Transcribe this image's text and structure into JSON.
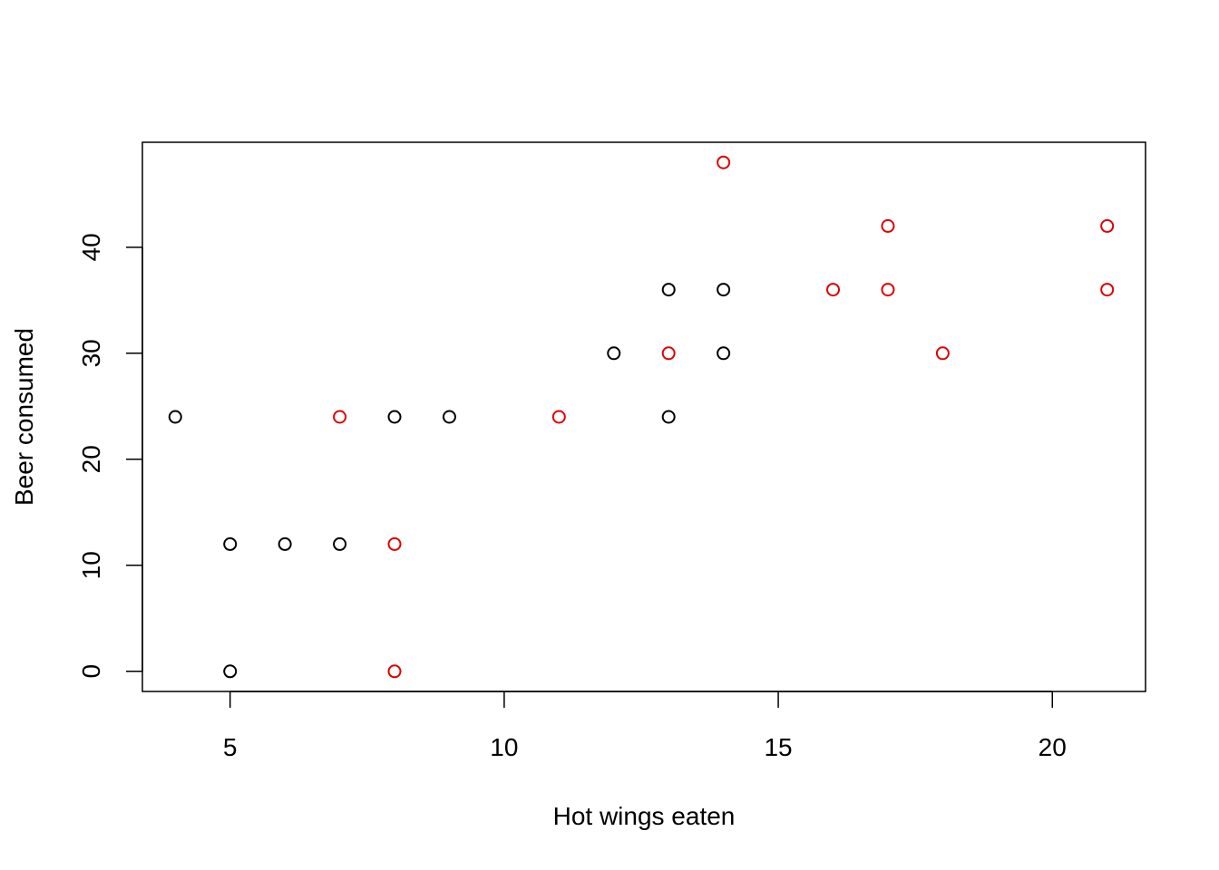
{
  "chart_data": {
    "type": "scatter",
    "title": "",
    "xlabel": "Hot wings eaten",
    "ylabel": "Beer consumed",
    "xlim": [
      3.4,
      21.7
    ],
    "ylim": [
      -1.9,
      49.9
    ],
    "x_ticks": [
      5,
      10,
      15,
      20
    ],
    "y_ticks": [
      0,
      10,
      20,
      30,
      40
    ],
    "grid": false,
    "legend": "none",
    "series": [
      {
        "color": "#000000",
        "marker": "open-circle",
        "points": [
          {
            "x": 4,
            "y": 24
          },
          {
            "x": 5,
            "y": 0
          },
          {
            "x": 5,
            "y": 12
          },
          {
            "x": 6,
            "y": 12
          },
          {
            "x": 7,
            "y": 12
          },
          {
            "x": 8,
            "y": 24
          },
          {
            "x": 9,
            "y": 24
          },
          {
            "x": 12,
            "y": 30
          },
          {
            "x": 13,
            "y": 36
          },
          {
            "x": 13,
            "y": 24
          },
          {
            "x": 14,
            "y": 36
          },
          {
            "x": 14,
            "y": 30
          }
        ]
      },
      {
        "color": "#df0000",
        "marker": "open-circle",
        "points": [
          {
            "x": 7,
            "y": 24
          },
          {
            "x": 8,
            "y": 12
          },
          {
            "x": 8,
            "y": 0
          },
          {
            "x": 11,
            "y": 24
          },
          {
            "x": 13,
            "y": 30
          },
          {
            "x": 14,
            "y": 48
          },
          {
            "x": 16,
            "y": 36
          },
          {
            "x": 17,
            "y": 42
          },
          {
            "x": 17,
            "y": 36
          },
          {
            "x": 18,
            "y": 30
          },
          {
            "x": 21,
            "y": 42
          },
          {
            "x": 21,
            "y": 36
          }
        ]
      }
    ]
  }
}
